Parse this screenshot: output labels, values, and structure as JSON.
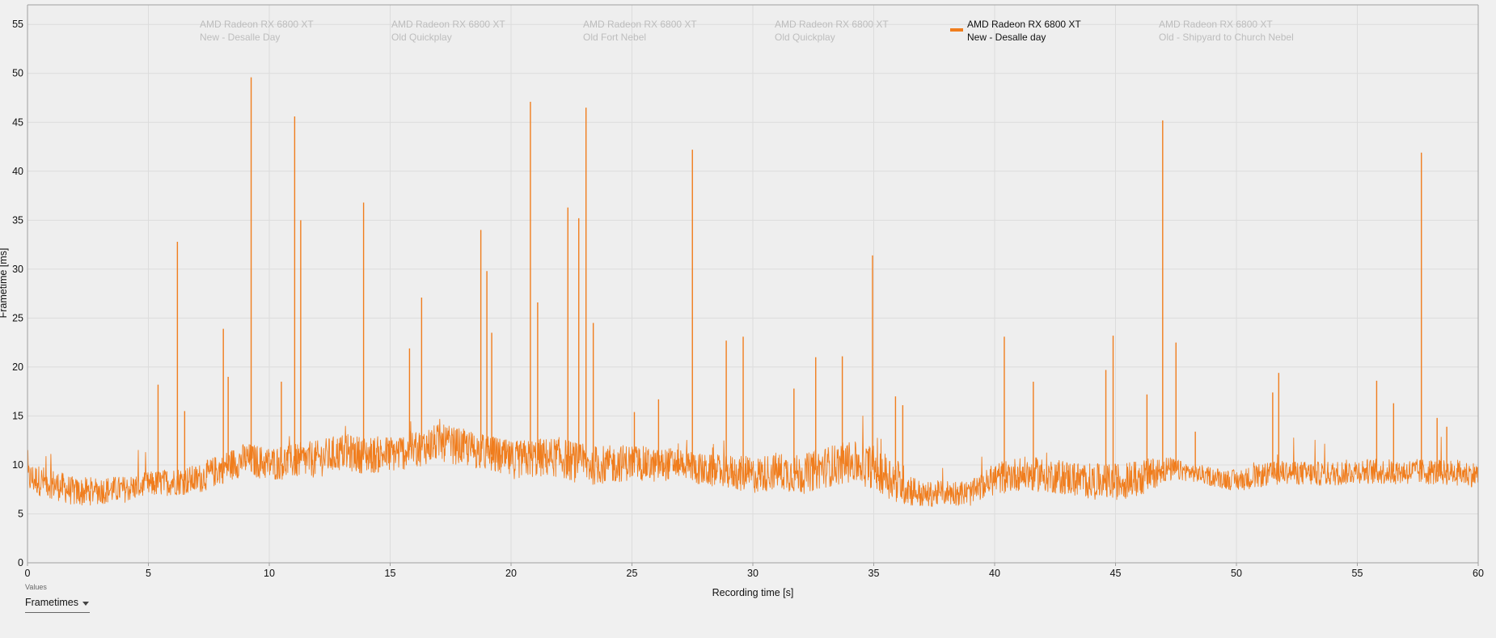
{
  "chart_data": {
    "type": "line",
    "xlabel": "Recording time [s]",
    "ylabel": "Frametime [ms]",
    "xlim": [
      0,
      60
    ],
    "ylim": [
      0,
      57
    ],
    "xticks": [
      0,
      5,
      10,
      15,
      20,
      25,
      30,
      35,
      40,
      45,
      50,
      55,
      60
    ],
    "yticks": [
      0,
      5,
      10,
      15,
      20,
      25,
      30,
      35,
      40,
      45,
      50,
      55
    ],
    "grid": true,
    "legend_placement": "top",
    "series": [
      {
        "name": "AMD Radeon RX 6800 XT New - Desalle day",
        "color": "#f07d1d",
        "baseline": [
          [
            0,
            8.7
          ],
          [
            1,
            8.1
          ],
          [
            2,
            7.2
          ],
          [
            3,
            7.4
          ],
          [
            4,
            7.5
          ],
          [
            5,
            8.0
          ],
          [
            6,
            8.3
          ],
          [
            7,
            8.5
          ],
          [
            8,
            9.6
          ],
          [
            9,
            10.6
          ],
          [
            10,
            10.1
          ],
          [
            11,
            10.4
          ],
          [
            12,
            10.6
          ],
          [
            13,
            11.3
          ],
          [
            14,
            11.0
          ],
          [
            15,
            11.1
          ],
          [
            16,
            11.6
          ],
          [
            17,
            12.3
          ],
          [
            18,
            11.8
          ],
          [
            19,
            11.2
          ],
          [
            20,
            10.5
          ],
          [
            21,
            10.7
          ],
          [
            22,
            10.8
          ],
          [
            23,
            10.0
          ],
          [
            24,
            10.0
          ],
          [
            25,
            10.3
          ],
          [
            26,
            9.9
          ],
          [
            27,
            10.3
          ],
          [
            28,
            9.4
          ],
          [
            29,
            9.3
          ],
          [
            30,
            8.9
          ],
          [
            31,
            9.4
          ],
          [
            32,
            9.0
          ],
          [
            33,
            9.8
          ],
          [
            34,
            10.3
          ],
          [
            35,
            9.8
          ],
          [
            36,
            8.3
          ],
          [
            37,
            6.9
          ],
          [
            38,
            7.2
          ],
          [
            39,
            7.1
          ],
          [
            40,
            8.6
          ],
          [
            41,
            9.1
          ],
          [
            42,
            9.0
          ],
          [
            43,
            8.7
          ],
          [
            44,
            8.3
          ],
          [
            45,
            8.3
          ],
          [
            46,
            8.6
          ],
          [
            47,
            9.6
          ],
          [
            48,
            9.3
          ],
          [
            49,
            8.8
          ],
          [
            50,
            8.4
          ],
          [
            51,
            8.9
          ],
          [
            52,
            9.3
          ],
          [
            53,
            9.1
          ],
          [
            54,
            9.1
          ],
          [
            55,
            9.4
          ],
          [
            56,
            9.3
          ],
          [
            57,
            9.3
          ],
          [
            58,
            9.3
          ],
          [
            59,
            9.2
          ],
          [
            60,
            9.0
          ]
        ],
        "noise": [
          [
            0,
            1.6
          ],
          [
            5,
            1.3
          ],
          [
            8,
            1.6
          ],
          [
            12,
            1.9
          ],
          [
            19,
            1.9
          ],
          [
            23,
            2.1
          ],
          [
            27,
            1.6
          ],
          [
            33,
            2.1
          ],
          [
            36,
            2.3
          ],
          [
            37,
            1.3
          ],
          [
            39.5,
            1.3
          ],
          [
            40,
            1.7
          ],
          [
            46,
            1.9
          ],
          [
            48,
            0.9
          ],
          [
            51,
            1.2
          ],
          [
            56,
            1.3
          ],
          [
            60,
            1.3
          ]
        ],
        "spikes": [
          [
            5.4,
            18.2
          ],
          [
            6.2,
            32.8
          ],
          [
            6.5,
            15.5
          ],
          [
            8.1,
            23.9
          ],
          [
            8.3,
            19.0
          ],
          [
            9.25,
            49.6
          ],
          [
            10.5,
            18.5
          ],
          [
            11.05,
            45.6
          ],
          [
            11.3,
            35.0
          ],
          [
            13.9,
            36.8
          ],
          [
            15.8,
            21.9
          ],
          [
            16.3,
            27.1
          ],
          [
            18.75,
            34.0
          ],
          [
            19.0,
            29.8
          ],
          [
            19.2,
            23.5
          ],
          [
            20.8,
            47.1
          ],
          [
            21.1,
            26.6
          ],
          [
            22.35,
            36.3
          ],
          [
            22.8,
            35.2
          ],
          [
            23.1,
            46.5
          ],
          [
            23.4,
            24.5
          ],
          [
            25.1,
            15.4
          ],
          [
            26.1,
            16.7
          ],
          [
            27.5,
            42.2
          ],
          [
            28.9,
            22.7
          ],
          [
            29.6,
            23.1
          ],
          [
            31.7,
            17.8
          ],
          [
            32.6,
            21.0
          ],
          [
            33.7,
            21.1
          ],
          [
            34.95,
            31.4
          ],
          [
            35.9,
            17.0
          ],
          [
            36.2,
            16.1
          ],
          [
            40.4,
            23.1
          ],
          [
            41.6,
            18.5
          ],
          [
            44.6,
            19.7
          ],
          [
            44.9,
            23.2
          ],
          [
            46.3,
            17.2
          ],
          [
            46.95,
            45.2
          ],
          [
            47.5,
            22.5
          ],
          [
            48.3,
            13.4
          ],
          [
            51.5,
            17.4
          ],
          [
            51.75,
            19.4
          ],
          [
            55.8,
            18.6
          ],
          [
            56.5,
            16.3
          ],
          [
            57.65,
            41.9
          ],
          [
            58.3,
            14.8
          ],
          [
            58.7,
            13.9
          ]
        ]
      }
    ]
  },
  "legend": [
    {
      "line1": "AMD Radeon RX 6800 XT",
      "line2": "New - Desalle Day",
      "active": false
    },
    {
      "line1": "AMD Radeon RX 6800 XT",
      "line2": "Old Quickplay",
      "active": false
    },
    {
      "line1": "AMD Radeon RX 6800 XT",
      "line2": "Old Fort Nebel",
      "active": false
    },
    {
      "line1": "AMD Radeon RX 6800 XT",
      "line2": "Old Quickplay",
      "active": false
    },
    {
      "line1": "AMD Radeon RX 6800 XT",
      "line2": "New - Desalle day",
      "active": true
    },
    {
      "line1": "AMD Radeon RX 6800 XT",
      "line2": "Old - Shipyard to Church Nebel",
      "active": false
    }
  ],
  "controls": {
    "values_label": "Values",
    "values_selected": "Frametimes"
  },
  "colors": {
    "background": "#f0f0f0",
    "grid": "#dcdcdc",
    "axis": "#a0a0a0",
    "series": "#f07d1d",
    "legend_inactive": "#bdbdbd"
  }
}
